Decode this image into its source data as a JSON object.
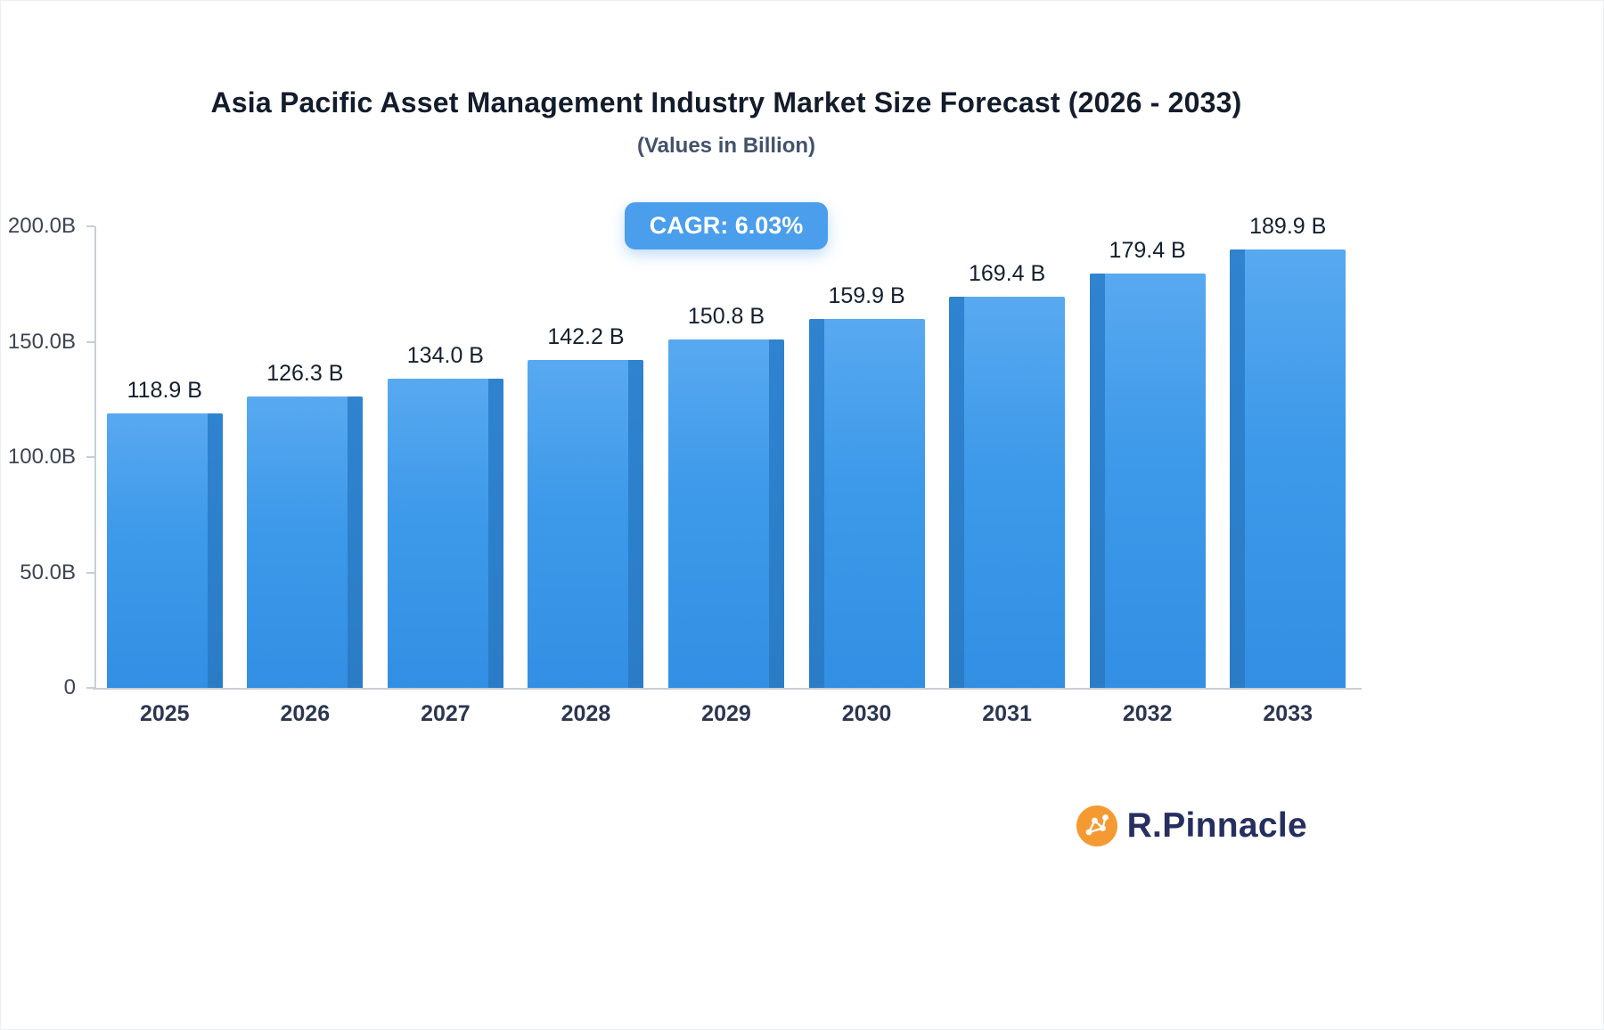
{
  "chart_data": {
    "type": "bar",
    "title": "Asia Pacific Asset Management Industry Market Size Forecast (2026 - 2033)",
    "subtitle": "(Values in Billion)",
    "badge": "CAGR: 6.03%",
    "categories": [
      "2025",
      "2026",
      "2027",
      "2028",
      "2029",
      "2030",
      "2031",
      "2032",
      "2033"
    ],
    "values": [
      118.9,
      126.3,
      134.0,
      142.2,
      150.8,
      159.9,
      169.4,
      179.4,
      189.9
    ],
    "value_labels": [
      "118.9 B",
      "126.3 B",
      "134.0 B",
      "142.2 B",
      "150.8 B",
      "159.9 B",
      "169.4 B",
      "179.4 B",
      "189.9 B"
    ],
    "y_tick_labels": [
      "200.0B",
      "150.0B",
      "100.0B",
      "50.0B",
      "0"
    ],
    "ylim": [
      0,
      200
    ],
    "unit": "Billion",
    "grid": false,
    "legend_position": "none",
    "colors": {
      "bar_face": "#3D99E9",
      "bar_face_light": "#58A9F0",
      "bar_side": "#2A7CC6",
      "badge_bg": "#4A9EEC",
      "badge_text": "#FFFFFF",
      "axis_line": "#C9CED6"
    }
  },
  "branding": {
    "logo_text": "R.Pinnacle"
  }
}
